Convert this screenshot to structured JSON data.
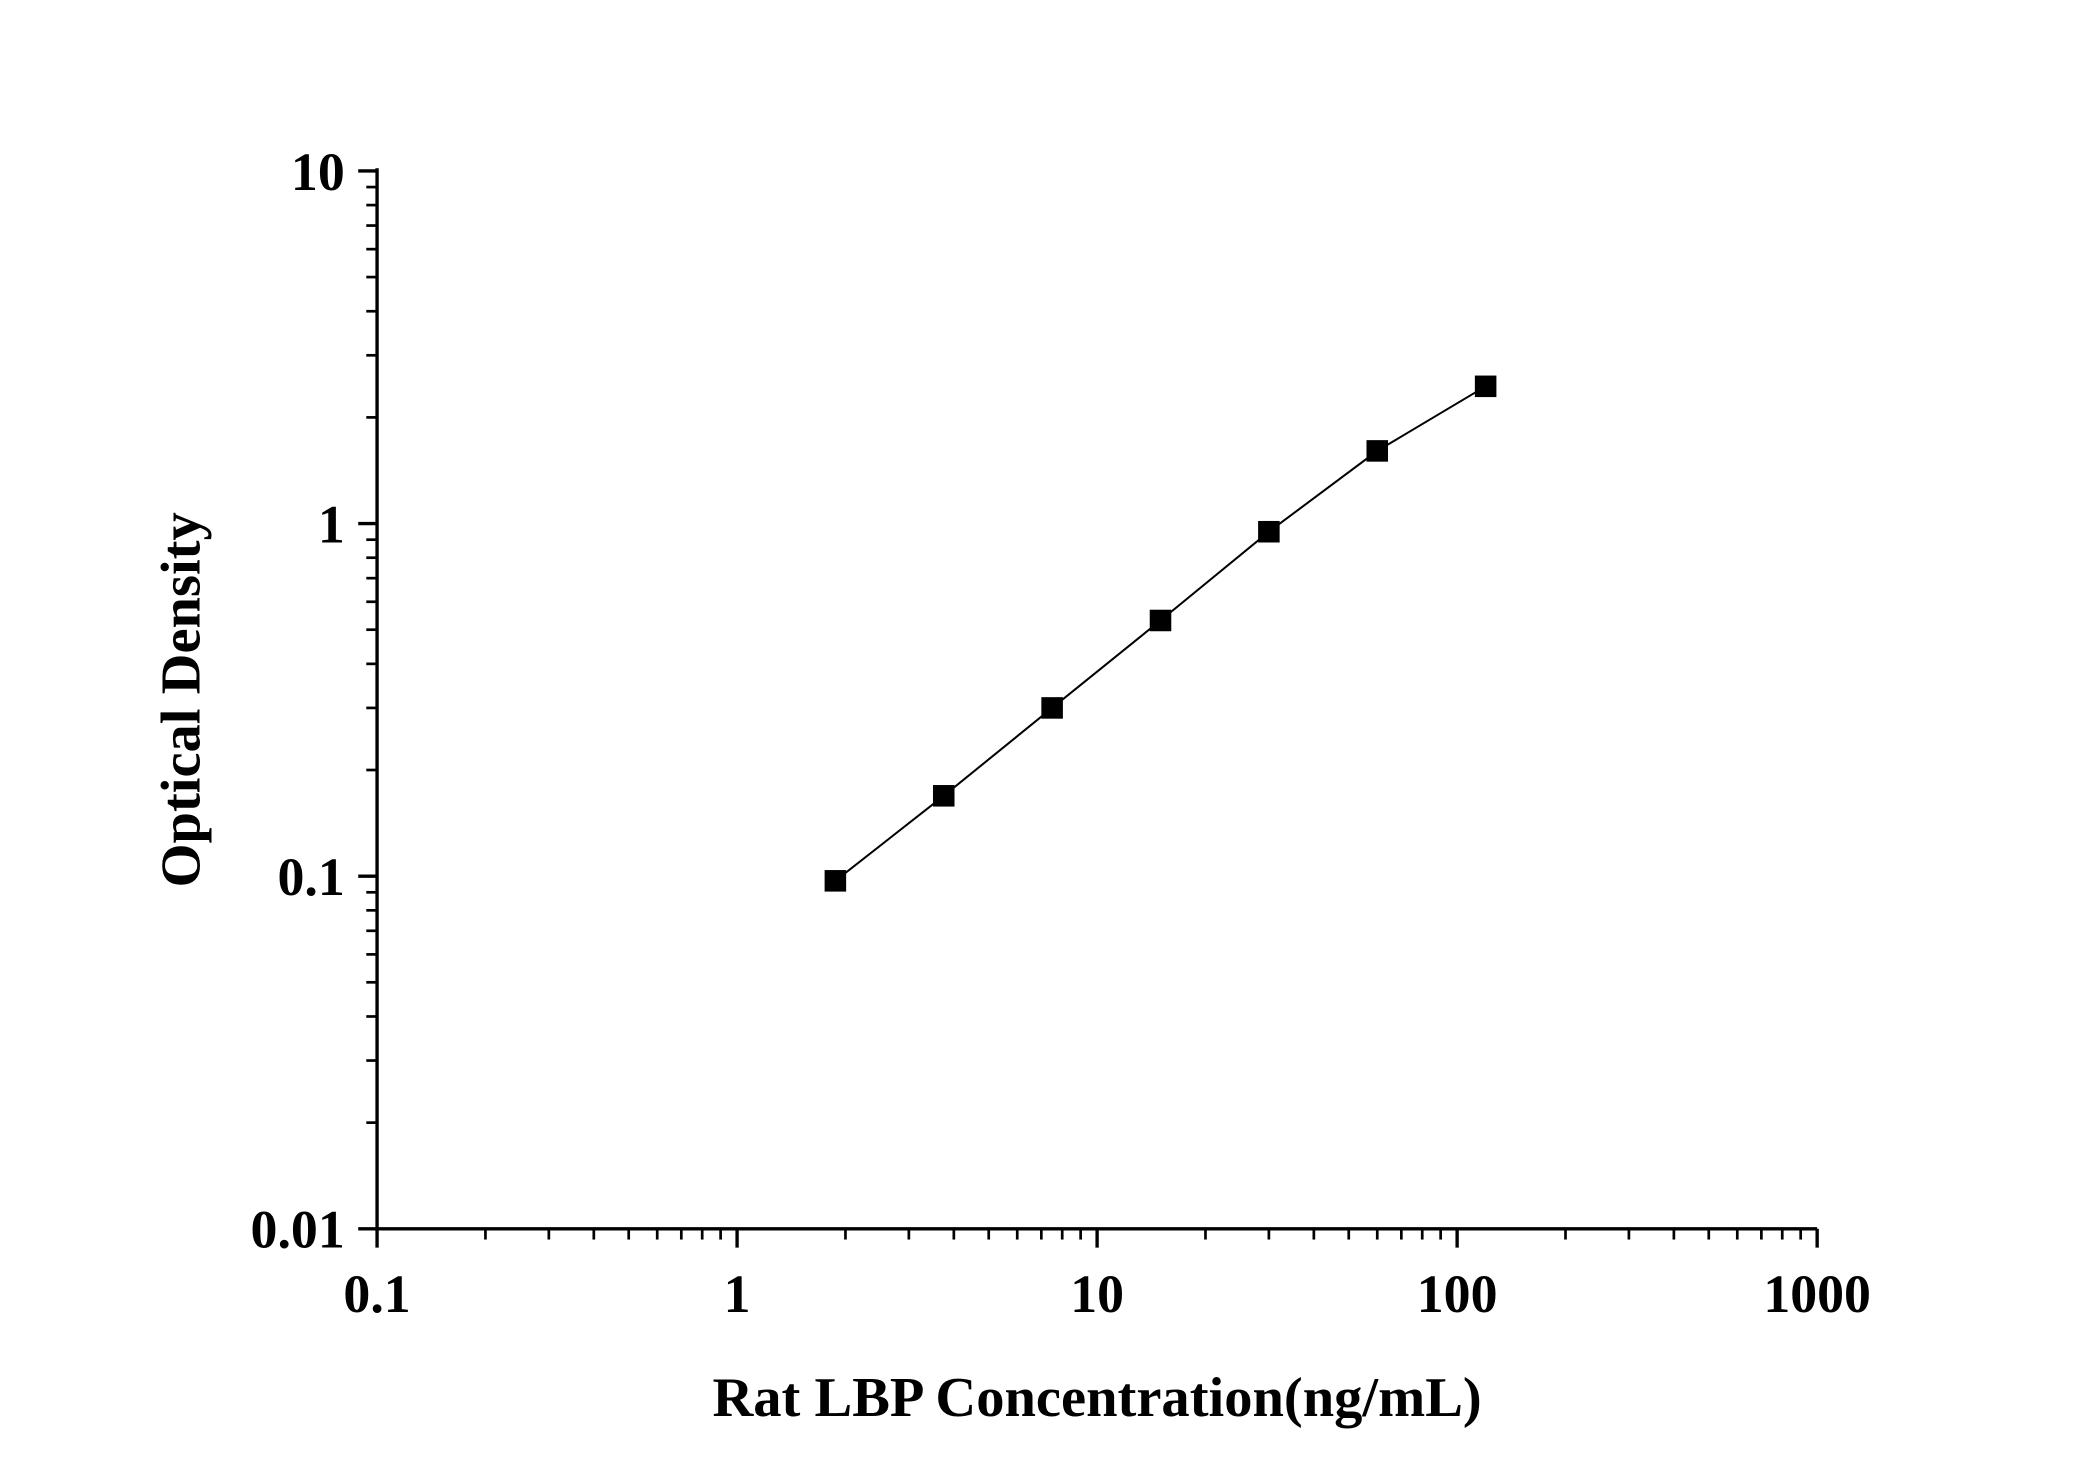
{
  "chart_data": {
    "type": "line",
    "title": "",
    "xlabel": "Rat LBP Concentration(ng/mL)",
    "ylabel": "Optical Density",
    "x_scale": "log",
    "y_scale": "log",
    "xlim": [
      0.1,
      1000
    ],
    "ylim": [
      0.01,
      10
    ],
    "x_ticks": [
      "0.1",
      "1",
      "10",
      "100",
      "1000"
    ],
    "y_ticks": [
      "0.01",
      "0.1",
      "1",
      "10"
    ],
    "grid": false,
    "marker": "square",
    "color": "#000000",
    "series": [
      {
        "x": [
          1.875,
          3.75,
          7.5,
          15,
          30,
          60,
          120
        ],
        "y": [
          0.097,
          0.169,
          0.3,
          0.531,
          0.948,
          1.607,
          2.45
        ]
      }
    ]
  }
}
